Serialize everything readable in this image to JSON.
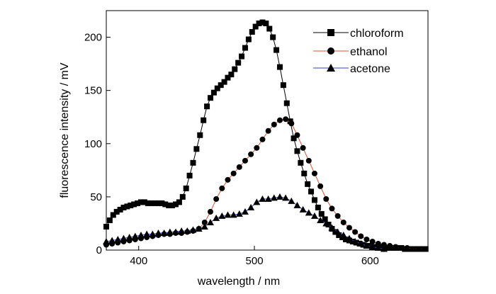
{
  "chart_data": {
    "type": "line",
    "xlabel": "wavelength / nm",
    "ylabel": "fluorescence intensity / mV",
    "xlim": [
      372,
      650
    ],
    "ylim": [
      0,
      225
    ],
    "xticks": [
      400,
      500,
      600
    ],
    "yticks": [
      0,
      50,
      100,
      150,
      200
    ],
    "grid": false,
    "legend_position": "top-right",
    "series": [
      {
        "name": "chloroform",
        "marker": "square",
        "line_color": "#000000",
        "marker_color": "#000000",
        "x": [
          372,
          375,
          378,
          381,
          384,
          387,
          390,
          393,
          396,
          399,
          402,
          405,
          408,
          411,
          414,
          417,
          420,
          423,
          426,
          429,
          432,
          435,
          438,
          441,
          444,
          447,
          450,
          453,
          456,
          459,
          462,
          465,
          468,
          471,
          474,
          477,
          480,
          483,
          486,
          489,
          492,
          495,
          498,
          501,
          504,
          507,
          510,
          513,
          516,
          519,
          522,
          525,
          528,
          531,
          534,
          537,
          540,
          543,
          546,
          549,
          552,
          555,
          558,
          561,
          564,
          567,
          570,
          573,
          576,
          579,
          582,
          585,
          588,
          591,
          594,
          597,
          600,
          603,
          606,
          609,
          612,
          615,
          618,
          621,
          624,
          627,
          630,
          633,
          636,
          639,
          642,
          645,
          648
        ],
        "y": [
          22,
          28,
          33,
          36,
          38,
          40,
          41,
          42,
          43,
          44,
          45,
          45,
          44,
          44,
          44,
          44,
          44,
          43,
          42,
          42,
          43,
          45,
          50,
          58,
          70,
          82,
          95,
          108,
          122,
          135,
          143,
          148,
          152,
          155,
          158,
          162,
          165,
          170,
          176,
          182,
          190,
          198,
          205,
          210,
          213,
          214,
          213,
          208,
          200,
          188,
          172,
          155,
          138,
          121,
          105,
          93,
          82,
          72,
          62,
          55,
          47,
          40,
          34,
          29,
          24,
          20,
          17,
          14,
          12,
          10,
          9,
          8,
          7,
          6,
          5,
          4,
          4,
          3,
          3,
          3,
          2,
          2,
          2,
          2,
          2,
          2,
          1,
          1,
          1,
          1,
          1,
          1,
          1
        ]
      },
      {
        "name": "ethanol",
        "marker": "circle",
        "line_color": "#e05030",
        "marker_color": "#000000",
        "x": [
          372,
          377,
          382,
          387,
          392,
          397,
          402,
          407,
          412,
          417,
          422,
          427,
          432,
          437,
          442,
          447,
          452,
          457,
          462,
          467,
          472,
          477,
          482,
          487,
          492,
          497,
          502,
          507,
          512,
          517,
          522,
          527,
          532,
          537,
          542,
          547,
          552,
          557,
          562,
          567,
          572,
          577,
          582,
          587,
          592,
          597,
          602,
          607,
          612,
          617,
          622,
          627,
          632,
          637,
          642,
          647
        ],
        "y": [
          5,
          6,
          7,
          8,
          9,
          10,
          11,
          12,
          13,
          14,
          15,
          15,
          16,
          16,
          17,
          18,
          20,
          26,
          36,
          48,
          58,
          66,
          72,
          78,
          84,
          90,
          96,
          104,
          112,
          118,
          122,
          123,
          119,
          108,
          96,
          84,
          72,
          60,
          48,
          39,
          32,
          26,
          21,
          17,
          13,
          10,
          8,
          6,
          5,
          4,
          3,
          2,
          2,
          1,
          1,
          1
        ]
      },
      {
        "name": "acetone",
        "marker": "triangle",
        "line_color": "#3040c0",
        "marker_color": "#000000",
        "x": [
          372,
          377,
          382,
          387,
          392,
          397,
          402,
          407,
          412,
          417,
          422,
          427,
          432,
          437,
          442,
          447,
          452,
          457,
          462,
          467,
          472,
          477,
          482,
          487,
          492,
          497,
          502,
          507,
          512,
          517,
          522,
          527,
          532,
          537,
          542,
          547,
          552,
          557,
          562,
          567,
          572,
          577,
          582,
          587,
          592,
          597,
          602,
          607,
          612
        ],
        "y": [
          8,
          9,
          10,
          11,
          12,
          13,
          14,
          15,
          15,
          16,
          16,
          17,
          17,
          18,
          18,
          19,
          20,
          22,
          26,
          30,
          32,
          33,
          33,
          34,
          36,
          40,
          45,
          48,
          48,
          49,
          50,
          49,
          46,
          42,
          38,
          35,
          32,
          28,
          25,
          21,
          17,
          14,
          11,
          8,
          6,
          4,
          3,
          2,
          1
        ]
      }
    ]
  }
}
